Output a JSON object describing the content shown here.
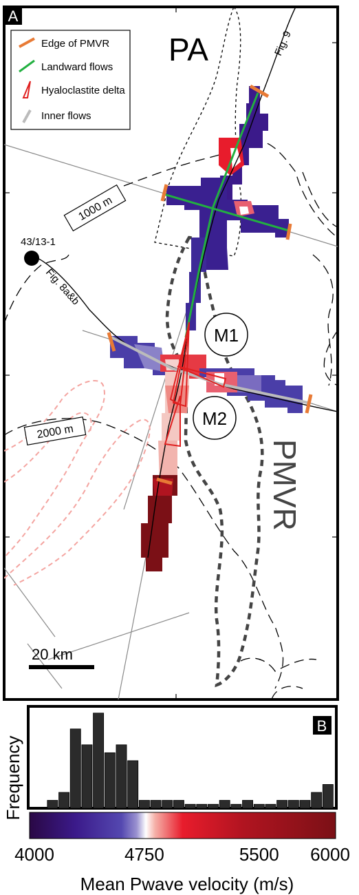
{
  "panel_a": {
    "panel_letter": "A",
    "region_pa": "PA",
    "region_pmvr": "PMVR",
    "legend": {
      "edge": "Edge of PMVR",
      "landward": "Landward flows",
      "hyalo": "Hyaloclastite delta",
      "inner": "Inner flows"
    },
    "profile_fig9": "Fig. 9",
    "profile_fig8": "Fig. 8a&b",
    "well_label": "43/13-1",
    "contour_1000": "1000 m",
    "contour_2000": "2000 m",
    "marker_m1": "M1",
    "marker_m2": "M2",
    "scale_label": "20 km"
  },
  "panel_b": {
    "panel_letter": "B",
    "ylabel": "Frequency",
    "xlabel": "Mean Pwave velocity (m/s)",
    "ticks": [
      "4000",
      "4750",
      "5500",
      "6000"
    ]
  },
  "chart_data": {
    "type": "bar",
    "title": "",
    "xlabel": "Mean Pwave velocity (m/s)",
    "ylabel": "Frequency",
    "xlim": [
      4000,
      6000
    ],
    "bin_width": 75,
    "bins": [
      4150,
      4225,
      4300,
      4375,
      4450,
      4525,
      4600,
      4675,
      4750,
      4825,
      4900,
      4975,
      5050,
      5125,
      5200,
      5275,
      5350,
      5425,
      5500,
      5575,
      5650,
      5725,
      5800,
      5875,
      5950
    ],
    "values": [
      1,
      2,
      10,
      8,
      12,
      7,
      8,
      6,
      1,
      1,
      1,
      1,
      0.5,
      0.5,
      0.5,
      1,
      0.5,
      1,
      0.5,
      0.5,
      1,
      1,
      1,
      2,
      3
    ],
    "colormap": [
      "#2a0845",
      "#3b1a8a",
      "#5448b0",
      "#ffffff",
      "#e81c2c",
      "#7b1016"
    ],
    "colors": {
      "edge": "#e87a35",
      "landward": "#22b040",
      "hyalo": "#e02020",
      "inner": "#bbbbbb",
      "contour_lines": "#555555",
      "pink_contours": "#f4a4a0"
    }
  }
}
